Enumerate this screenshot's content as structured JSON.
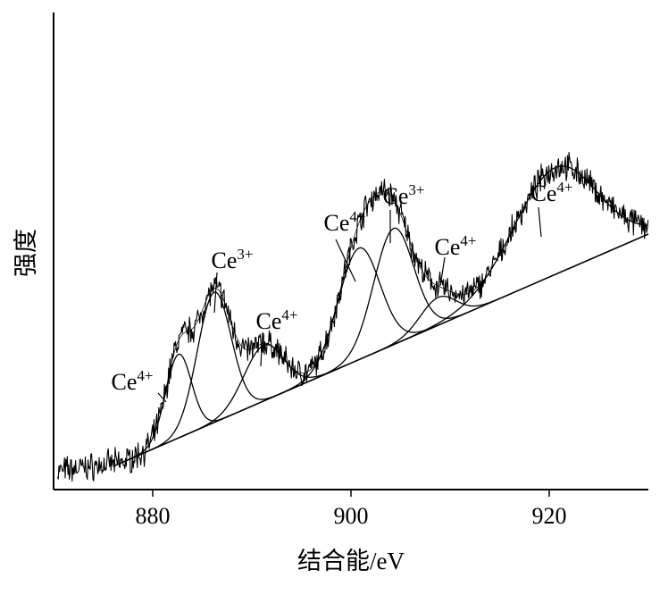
{
  "chart_data": {
    "type": "line",
    "title": "",
    "xlabel": "结合能/eV",
    "ylabel": "强度",
    "xlim": [
      870,
      930
    ],
    "x_ticks": [
      880,
      900,
      920
    ],
    "x_tick_labels": [
      "880",
      "900",
      "920"
    ],
    "y_ticks": [],
    "grid": false,
    "legend": "none",
    "baseline": {
      "x": [
        876,
        930
      ],
      "y": [
        0.05,
        0.55
      ]
    },
    "peaks": [
      {
        "center": 882.6,
        "height": 0.18,
        "sigma": 1.3,
        "label": "Ce",
        "sup": "4+"
      },
      {
        "center": 886.2,
        "height": 0.28,
        "sigma": 1.7,
        "label": "Ce",
        "sup": "3+"
      },
      {
        "center": 891.2,
        "height": 0.12,
        "sigma": 2.0,
        "label": "Ce",
        "sup": "4+"
      },
      {
        "center": 900.8,
        "height": 0.24,
        "sigma": 2.1,
        "label": "Ce",
        "sup": "4+"
      },
      {
        "center": 904.3,
        "height": 0.25,
        "sigma": 2.0,
        "label": "Ce",
        "sup": "3+"
      },
      {
        "center": 908.8,
        "height": 0.06,
        "sigma": 1.8,
        "label": "Ce",
        "sup": "4+"
      },
      {
        "center": 920.6,
        "height": 0.23,
        "sigma": 4.2,
        "label": "Ce",
        "sup": "4+"
      }
    ],
    "series": [
      {
        "style": "noisy-experimental"
      },
      {
        "style": "fitted-envelope"
      },
      {
        "style": "fitted-components"
      },
      {
        "style": "background"
      }
    ]
  }
}
